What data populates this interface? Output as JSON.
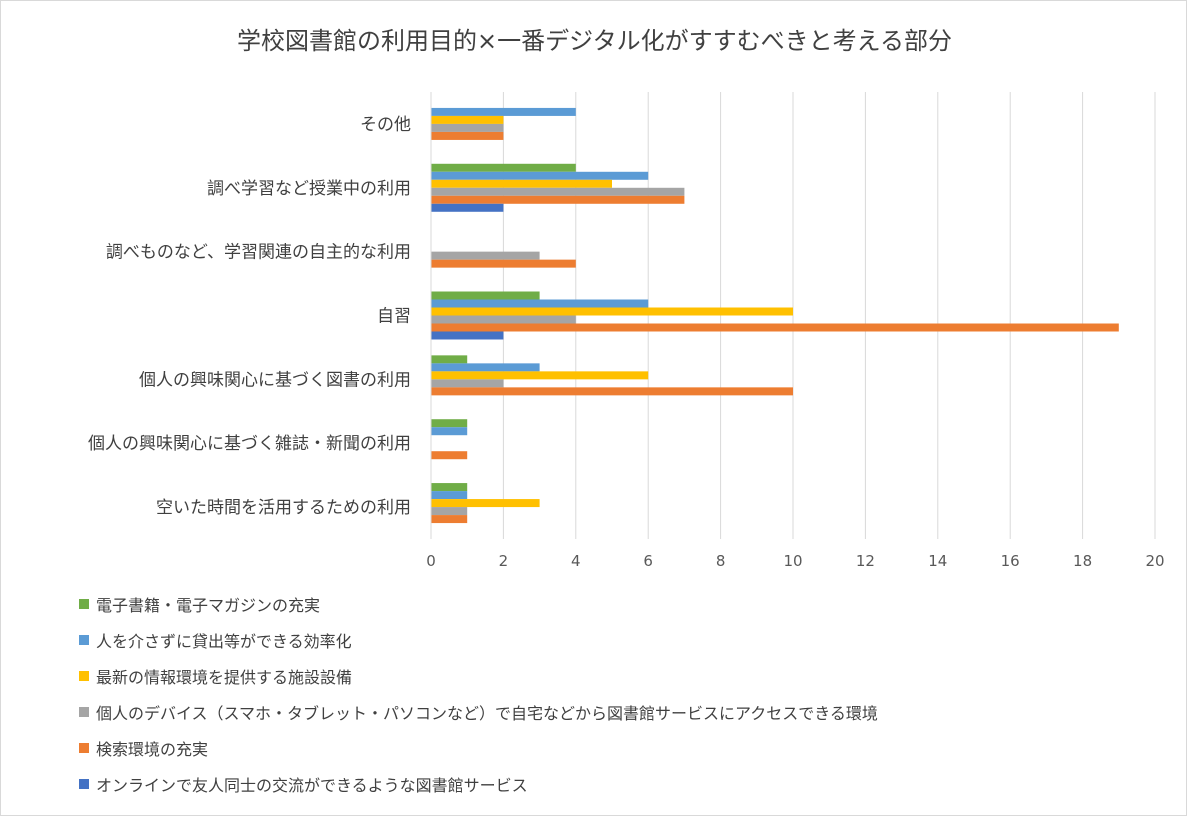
{
  "chart_data": {
    "type": "bar",
    "orientation": "horizontal",
    "title": "学校図書館の利用目的×一番デジタル化がすすむべきと考える部分",
    "categories": [
      "その他",
      "調べ学習など授業中の利用",
      "調べものなど、学習関連の自主的な利用",
      "自習",
      "個人の興味関心に基づく図書の利用",
      "個人の興味関心に基づく雑誌・新聞の利用",
      "空いた時間を活用するための利用"
    ],
    "series": [
      {
        "name": "電子書籍・電子マガジンの充実",
        "color": "#70ad47",
        "values": [
          0,
          4,
          0,
          3,
          1,
          1,
          1
        ]
      },
      {
        "name": "人を介さずに貸出等ができる効率化",
        "color": "#5b9bd5",
        "values": [
          4,
          6,
          0,
          6,
          3,
          1,
          1
        ]
      },
      {
        "name": "最新の情報環境を提供する施設設備",
        "color": "#ffc000",
        "values": [
          2,
          5,
          0,
          10,
          6,
          0,
          3
        ]
      },
      {
        "name": "個人のデバイス（スマホ・タブレット・パソコンなど）で自宅などから図書館サービスにアクセスできる環境",
        "color": "#a5a5a5",
        "values": [
          2,
          7,
          3,
          4,
          2,
          0,
          1
        ]
      },
      {
        "name": "検索環境の充実",
        "color": "#ed7d31",
        "values": [
          2,
          7,
          4,
          19,
          10,
          1,
          1
        ]
      },
      {
        "name": "オンラインで友人同士の交流ができるような図書館サービス",
        "color": "#4472c4",
        "values": [
          0,
          2,
          0,
          2,
          0,
          0,
          0
        ]
      }
    ],
    "xlim": [
      0,
      20
    ],
    "xticks": [
      "0",
      "2",
      "4",
      "6",
      "8",
      "10",
      "12",
      "14",
      "16",
      "18",
      "20"
    ],
    "grid": true,
    "legend_position": "bottom"
  }
}
